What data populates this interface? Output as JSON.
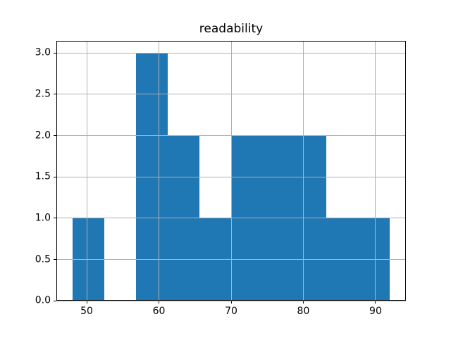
{
  "figure": {
    "background": "#ffffff"
  },
  "chart_data": {
    "type": "bar",
    "subtype": "histogram",
    "title": "readability",
    "xlabel": "",
    "ylabel": "",
    "bin_edges": [
      48.0,
      52.4,
      56.8,
      61.2,
      65.6,
      70.0,
      74.4,
      78.8,
      83.2,
      87.6,
      92.0
    ],
    "counts": [
      1,
      0,
      3,
      2,
      1,
      2,
      2,
      2,
      1,
      1
    ],
    "xlim": [
      45.8,
      94.2
    ],
    "ylim": [
      0,
      3.15
    ],
    "xticks": [
      {
        "value": 50,
        "label": "50"
      },
      {
        "value": 60,
        "label": "60"
      },
      {
        "value": 70,
        "label": "70"
      },
      {
        "value": 80,
        "label": "80"
      },
      {
        "value": 90,
        "label": "90"
      }
    ],
    "yticks": [
      {
        "value": 0.0,
        "label": "0.0"
      },
      {
        "value": 0.5,
        "label": "0.5"
      },
      {
        "value": 1.0,
        "label": "1.0"
      },
      {
        "value": 1.5,
        "label": "1.5"
      },
      {
        "value": 2.0,
        "label": "2.0"
      },
      {
        "value": 2.5,
        "label": "2.5"
      },
      {
        "value": 3.0,
        "label": "3.0"
      }
    ],
    "grid": true,
    "grid_above_bars": true,
    "legend": false,
    "colors": {
      "bar": "#1f77b4",
      "grid": "#b0b0b0",
      "axes_edge": "#000000",
      "text": "#000000",
      "background": "#ffffff"
    }
  }
}
